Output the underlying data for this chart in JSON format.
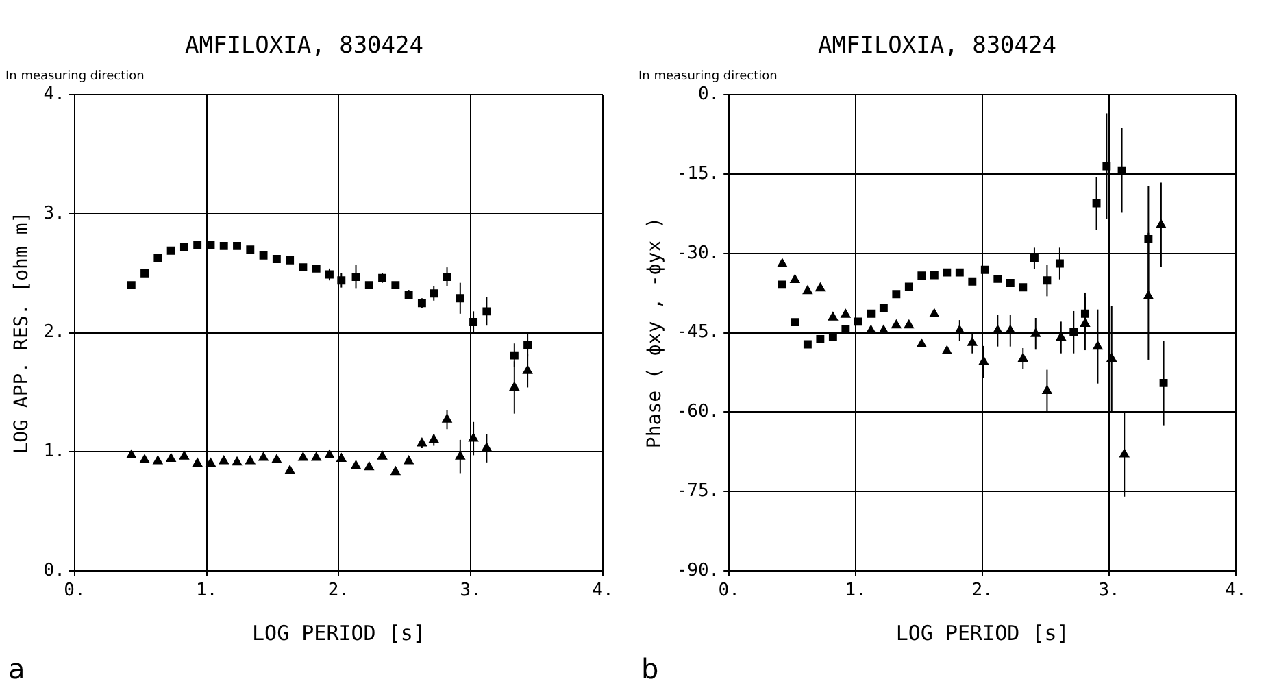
{
  "chart_data": [
    {
      "type": "scatter",
      "title": "AMFILOXIA, 830424",
      "subtitle": "In measuring direction",
      "xlabel": "LOG PERIOD [s]",
      "ylabel": "LOG APP. RES. [ohm m]",
      "annotations": [
        "a"
      ],
      "xlim": [
        0,
        4
      ],
      "xticks": [
        {
          "value": 0,
          "label": "0."
        },
        {
          "value": 1,
          "label": "1."
        },
        {
          "value": 2,
          "label": "2."
        },
        {
          "value": 3,
          "label": "3."
        },
        {
          "value": 4,
          "label": "4."
        }
      ],
      "ylim": [
        0,
        4
      ],
      "yticks": [
        {
          "value": 0,
          "label": "0."
        },
        {
          "value": 1,
          "label": "1."
        },
        {
          "value": 2,
          "label": "2."
        },
        {
          "value": 3,
          "label": "3."
        },
        {
          "value": 4,
          "label": "4."
        }
      ],
      "grid": true,
      "legend": false,
      "series": [
        {
          "color": "#000000",
          "marker": "square",
          "x": [
            0.43,
            0.53,
            0.63,
            0.73,
            0.83,
            0.93,
            1.03,
            1.13,
            1.23,
            1.33,
            1.43,
            1.53,
            1.63,
            1.73,
            1.83,
            1.93,
            2.02,
            2.13,
            2.23,
            2.33,
            2.43,
            2.53,
            2.63,
            2.72,
            2.82,
            2.92,
            3.02,
            3.12,
            3.33,
            3.43
          ],
          "values": [
            2.4,
            2.5,
            2.63,
            2.69,
            2.72,
            2.74,
            2.74,
            2.73,
            2.73,
            2.7,
            2.65,
            2.62,
            2.61,
            2.55,
            2.54,
            2.49,
            2.44,
            2.47,
            2.4,
            2.46,
            2.4,
            2.32,
            2.25,
            2.33,
            2.47,
            2.29,
            2.09,
            2.18,
            1.81,
            1.9
          ],
          "errors": [
            null,
            null,
            null,
            null,
            null,
            null,
            null,
            null,
            null,
            null,
            null,
            null,
            null,
            null,
            null,
            0.05,
            0.06,
            0.1,
            null,
            0.04,
            null,
            0.04,
            0.04,
            0.06,
            0.08,
            0.13,
            0.09,
            0.12,
            0.1,
            0.1
          ]
        },
        {
          "color": "#000000",
          "marker": "triangle",
          "x": [
            0.43,
            0.53,
            0.63,
            0.73,
            0.83,
            0.93,
            1.03,
            1.13,
            1.23,
            1.33,
            1.43,
            1.53,
            1.63,
            1.73,
            1.83,
            1.93,
            2.02,
            2.13,
            2.23,
            2.33,
            2.43,
            2.53,
            2.63,
            2.72,
            2.82,
            2.92,
            3.02,
            3.12,
            3.33,
            3.43
          ],
          "values": [
            0.97,
            0.93,
            0.92,
            0.94,
            0.96,
            0.9,
            0.9,
            0.92,
            0.91,
            0.92,
            0.95,
            0.93,
            0.84,
            0.95,
            0.95,
            0.97,
            0.94,
            0.88,
            0.87,
            0.96,
            0.83,
            0.92,
            1.07,
            1.1,
            1.27,
            0.96,
            1.11,
            1.03,
            1.54,
            1.68
          ],
          "errors": [
            null,
            null,
            null,
            null,
            null,
            null,
            null,
            null,
            null,
            null,
            null,
            null,
            null,
            null,
            null,
            null,
            null,
            null,
            null,
            null,
            null,
            null,
            0.04,
            0.05,
            0.08,
            0.14,
            0.14,
            0.12,
            0.22,
            0.14
          ]
        }
      ]
    },
    {
      "type": "scatter",
      "title": "AMFILOXIA, 830424",
      "subtitle": "In measuring direction",
      "xlabel": "LOG PERIOD [s]",
      "ylabel": "Phase ( ϕxy , -ϕyx )",
      "annotations": [
        "b"
      ],
      "xlim": [
        0,
        4
      ],
      "xticks": [
        {
          "value": 0,
          "label": "0."
        },
        {
          "value": 1,
          "label": "1."
        },
        {
          "value": 2,
          "label": "2."
        },
        {
          "value": 3,
          "label": "3."
        },
        {
          "value": 4,
          "label": "4."
        }
      ],
      "ylim": [
        -90,
        0
      ],
      "yticks": [
        {
          "value": -90,
          "label": "-90."
        },
        {
          "value": -75,
          "label": "-75."
        },
        {
          "value": -60,
          "label": "-60."
        },
        {
          "value": -45,
          "label": "-45."
        },
        {
          "value": -30,
          "label": "-30."
        },
        {
          "value": -15,
          "label": "-15."
        },
        {
          "value": 0,
          "label": "0."
        }
      ],
      "grid": true,
      "legend": false,
      "series": [
        {
          "color": "#000000",
          "marker": "square",
          "x": [
            0.42,
            0.52,
            0.62,
            0.72,
            0.82,
            0.92,
            1.02,
            1.12,
            1.22,
            1.32,
            1.42,
            1.52,
            1.62,
            1.72,
            1.82,
            1.92,
            2.02,
            2.12,
            2.22,
            2.32,
            2.41,
            2.51,
            2.61,
            2.72,
            2.81,
            2.9,
            2.98,
            3.1,
            3.31,
            3.43
          ],
          "values": [
            -35.9,
            -43.0,
            -47.2,
            -46.2,
            -45.7,
            -44.4,
            -42.9,
            -41.4,
            -40.3,
            -37.7,
            -36.3,
            -34.2,
            -34.1,
            -33.6,
            -33.6,
            -35.3,
            -33.1,
            -34.8,
            -35.6,
            -36.4,
            -30.9,
            -35.1,
            -31.9,
            -44.9,
            -41.4,
            -20.5,
            -13.5,
            -14.3,
            -27.3,
            -54.5
          ],
          "errors": [
            null,
            null,
            null,
            null,
            null,
            null,
            null,
            null,
            null,
            null,
            null,
            null,
            null,
            null,
            null,
            null,
            null,
            null,
            null,
            null,
            2,
            3,
            3,
            4,
            4,
            5,
            10,
            8,
            10,
            8
          ]
        },
        {
          "color": "#000000",
          "marker": "triangle",
          "x": [
            0.42,
            0.52,
            0.62,
            0.72,
            0.82,
            0.92,
            1.02,
            1.12,
            1.22,
            1.32,
            1.42,
            1.52,
            1.62,
            1.72,
            1.82,
            1.92,
            2.01,
            2.12,
            2.22,
            2.32,
            2.42,
            2.51,
            2.62,
            2.71,
            2.81,
            2.91,
            3.02,
            3.12,
            3.31,
            3.41
          ],
          "values": [
            -32,
            -35.0,
            -37.1,
            -36.6,
            -42.1,
            -41.6,
            null,
            -44.6,
            -44.6,
            -43.6,
            -43.6,
            -47.2,
            -41.5,
            -48.5,
            -44.6,
            -46.9,
            -50.5,
            -44.6,
            -44.6,
            -49.9,
            -45.2,
            -56,
            -45.9,
            null,
            -43.3,
            -47.6,
            -49.9,
            -68,
            -38.1,
            -24.6
          ],
          "errors": [
            null,
            null,
            null,
            null,
            null,
            null,
            null,
            null,
            null,
            null,
            null,
            null,
            null,
            null,
            2,
            2,
            3,
            3,
            3,
            2,
            3,
            4,
            3,
            null,
            5,
            7,
            10,
            8,
            12,
            8
          ]
        }
      ]
    }
  ]
}
